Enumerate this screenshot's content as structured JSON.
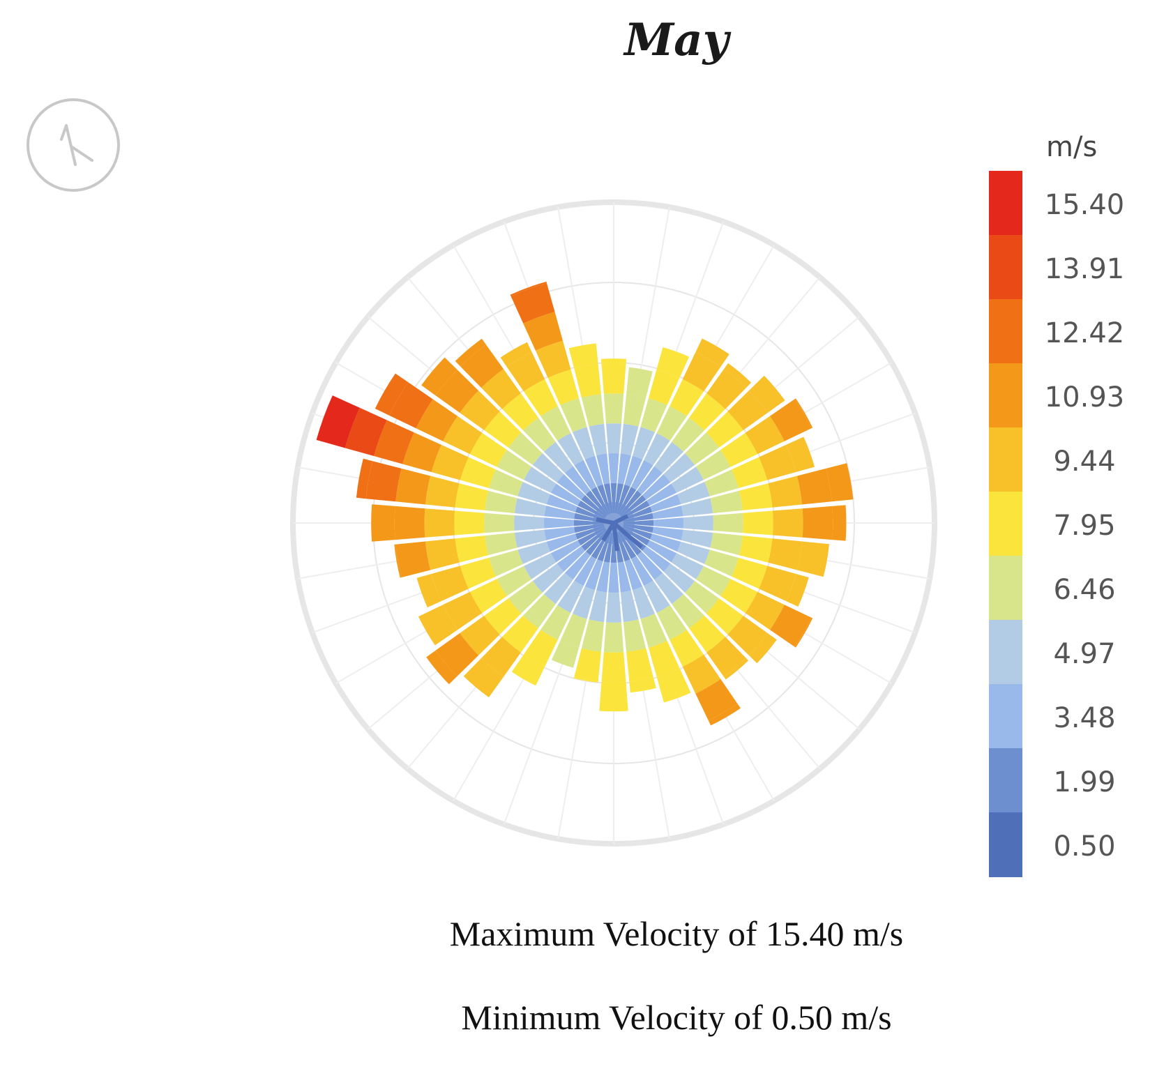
{
  "chart_data": {
    "type": "wind_rose",
    "title": "May",
    "legend": {
      "unit": "m/s",
      "ticks": [
        "15.40",
        "13.91",
        "12.42",
        "10.93",
        "9.44",
        "7.95",
        "6.46",
        "4.97",
        "3.48",
        "1.99",
        "0.50"
      ],
      "colors": [
        "#e4281c",
        "#ea4a16",
        "#f07115",
        "#f4981a",
        "#f8c12a",
        "#fbe43c",
        "#d8e58a",
        "#b3cce6",
        "#98b9ea",
        "#6d8fd0",
        "#4f70b8"
      ]
    },
    "directions": 36,
    "bins": [
      {
        "angle": 0,
        "max": 8.2
      },
      {
        "angle": 10,
        "max": 7.8
      },
      {
        "angle": 20,
        "max": 9.1
      },
      {
        "angle": 30,
        "max": 10.2
      },
      {
        "angle": 40,
        "max": 9.8
      },
      {
        "angle": 50,
        "max": 10.5
      },
      {
        "angle": 60,
        "max": 11.0
      },
      {
        "angle": 70,
        "max": 10.4
      },
      {
        "angle": 80,
        "max": 12.0
      },
      {
        "angle": 90,
        "max": 11.6
      },
      {
        "angle": 100,
        "max": 10.8
      },
      {
        "angle": 110,
        "max": 10.1
      },
      {
        "angle": 120,
        "max": 11.0
      },
      {
        "angle": 130,
        "max": 10.0
      },
      {
        "angle": 140,
        "max": 9.6
      },
      {
        "angle": 150,
        "max": 11.2
      },
      {
        "angle": 160,
        "max": 9.3
      },
      {
        "angle": 170,
        "max": 8.5
      },
      {
        "angle": 180,
        "max": 9.4
      },
      {
        "angle": 190,
        "max": 8.0
      },
      {
        "angle": 200,
        "max": 7.5
      },
      {
        "angle": 210,
        "max": 9.0
      },
      {
        "angle": 220,
        "max": 10.7
      },
      {
        "angle": 230,
        "max": 11.5
      },
      {
        "angle": 240,
        "max": 10.8
      },
      {
        "angle": 250,
        "max": 10.2
      },
      {
        "angle": 260,
        "max": 11.0
      },
      {
        "angle": 270,
        "max": 12.1
      },
      {
        "angle": 280,
        "max": 12.9
      },
      {
        "angle": 290,
        "max": 15.4
      },
      {
        "angle": 300,
        "max": 13.2
      },
      {
        "angle": 310,
        "max": 11.8
      },
      {
        "angle": 320,
        "max": 11.3
      },
      {
        "angle": 330,
        "max": 10.0
      },
      {
        "angle": 340,
        "max": 12.5
      },
      {
        "angle": 350,
        "max": 9.0
      }
    ],
    "grid": true
  },
  "stats": {
    "max_text": "Maximum Velocity of 15.40 m/s",
    "min_text": "Minimum Velocity of 0.50 m/s"
  },
  "icons": {
    "compass": "north-arrow-icon"
  }
}
